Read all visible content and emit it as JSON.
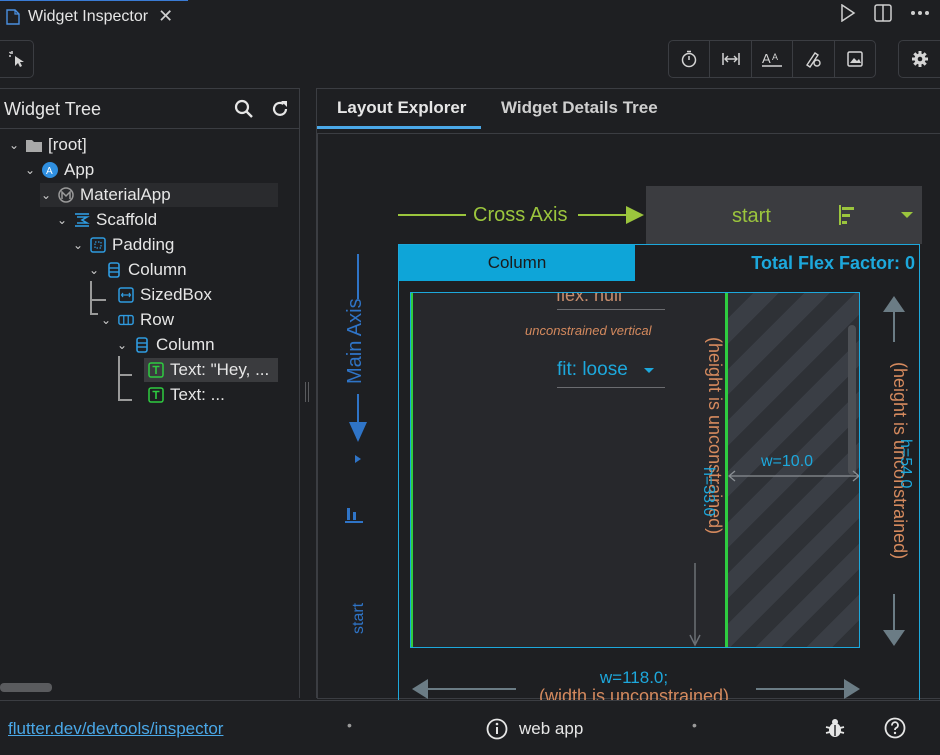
{
  "titlebar": {
    "tab_label": "Widget Inspector",
    "close_glyph": "✕",
    "actions": [
      "run-icon",
      "split-editor-icon",
      "more-icon"
    ]
  },
  "toolbar": {
    "select_mode_icon": "select-widget-icon",
    "tools": [
      "timer-icon",
      "width-icon",
      "text-size-icon",
      "pen-icon",
      "image-icon"
    ],
    "settings_icon": "gear-icon"
  },
  "widget_tree": {
    "title": "Widget Tree",
    "nodes": [
      {
        "label": "[root]",
        "icon": "folder-icon"
      },
      {
        "label": "App",
        "icon": "app-icon"
      },
      {
        "label": "MaterialApp",
        "icon": "materialapp-icon"
      },
      {
        "label": "Scaffold",
        "icon": "scaffold-icon"
      },
      {
        "label": "Padding",
        "icon": "padding-icon"
      },
      {
        "label": "Column",
        "icon": "column-icon"
      },
      {
        "label": "SizedBox",
        "icon": "sizedbox-icon"
      },
      {
        "label": "Row",
        "icon": "row-icon"
      },
      {
        "label": "Column",
        "icon": "column-icon"
      },
      {
        "label": "Text: \"Hey, ...",
        "icon": "text-icon"
      },
      {
        "label": "Text: ...",
        "icon": "text-icon"
      }
    ]
  },
  "right": {
    "tabs": [
      "Layout Explorer",
      "Widget Details Tree"
    ],
    "cross_axis_label": "Cross Axis",
    "cross_axis_value": "start",
    "main_axis_label": "Main Axis",
    "main_axis_value": "start",
    "column_label": "Column",
    "total_flex": "Total Flex Factor: 0",
    "flex_text": "flex: null",
    "unconstrained_vertical": "unconstrained vertical",
    "fit_text": "fit: loose",
    "h_inner": "h=33.0",
    "h_inner_note": "(height is unconstrained)",
    "w_small": "w=10.0",
    "h_outer": "h=54.0",
    "h_outer_note": "(height is unconstrained)",
    "w_outer": "w=118.0;",
    "w_outer_note": "(width is unconstrained)",
    "colors": {
      "cross": "#9bc53d",
      "main": "#2f74c7",
      "accent": "#1da8dc",
      "green": "#2ecc40",
      "note": "#d58a5e"
    }
  },
  "statusbar": {
    "link": "flutter.dev/devtools/inspector",
    "mode": "web app",
    "icons": [
      "info-icon",
      "bug-icon",
      "help-icon"
    ]
  }
}
